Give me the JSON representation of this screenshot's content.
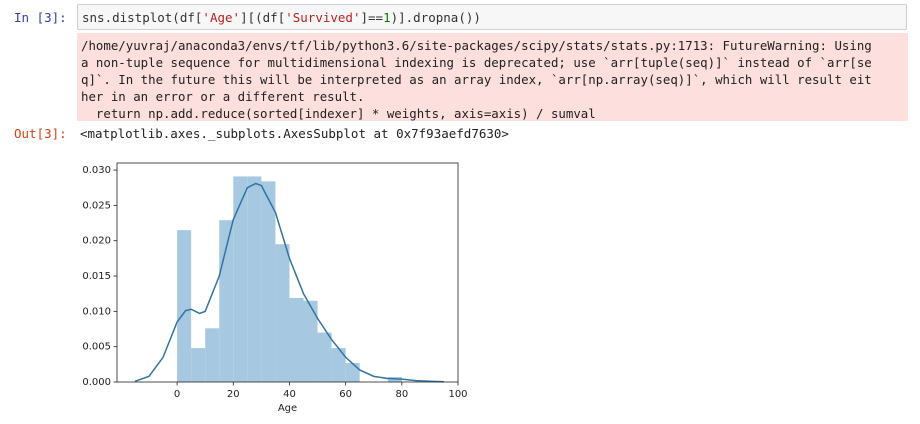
{
  "cell": {
    "in_prompt": "In [3]:",
    "code_tokens": [
      "sns.distplot(df[",
      "'Age'",
      "][(df[",
      "'Survived'",
      "]==",
      "1",
      ")].dropna())"
    ],
    "warning_lines": [
      "/home/yuvraj/anaconda3/envs/tf/lib/python3.6/site-packages/scipy/stats/stats.py:1713: FutureWarning: Using",
      "a non-tuple sequence for multidimensional indexing is deprecated; use `arr[tuple(seq)]` instead of `arr[se",
      "q]`. In the future this will be interpreted as an array index, `arr[np.array(seq)]`, which will result eit",
      "her in an error or a different result.",
      "  return np.add.reduce(sorted[indexer] * weights, axis=axis) / sumval"
    ],
    "out_prompt": "Out[3]:",
    "output": "<matplotlib.axes._subplots.AxesSubplot at 0x7f93aefd7630>"
  },
  "chart_data": {
    "type": "histogram",
    "xlabel": "Age",
    "bins": [
      0,
      5,
      10,
      15,
      20,
      25,
      30,
      35,
      40,
      45,
      50,
      55,
      60,
      65,
      70,
      75,
      80
    ],
    "values": [
      0.0215,
      0.0048,
      0.0076,
      0.0229,
      0.0291,
      0.0291,
      0.0284,
      0.0195,
      0.0119,
      0.0115,
      0.007,
      0.0048,
      0.0027,
      0,
      0,
      0.0007
    ],
    "color": "#a6c8e0",
    "kde": {
      "x": [
        -15,
        -10,
        -5,
        0,
        3,
        5,
        8,
        10,
        15,
        20,
        25,
        28,
        30,
        35,
        40,
        45,
        50,
        55,
        60,
        65,
        70,
        75,
        80,
        85,
        90,
        95
      ],
      "values": [
        0.0001,
        0.0008,
        0.0035,
        0.0085,
        0.0101,
        0.0103,
        0.0097,
        0.01,
        0.015,
        0.023,
        0.0275,
        0.0281,
        0.0278,
        0.024,
        0.0175,
        0.0125,
        0.009,
        0.006,
        0.0035,
        0.0017,
        0.0008,
        0.0005,
        0.0004,
        0.0002,
        0.0001,
        3e-05
      ],
      "color": "#3274a1"
    },
    "xlim": [
      -21.4,
      100
    ],
    "ylim": [
      0,
      0.031
    ],
    "xticks": [
      0,
      20,
      40,
      60,
      80,
      100
    ],
    "yticks": [
      {
        "value": 0,
        "label": "0.000"
      },
      0.005,
      {
        "value": 0.01,
        "label": "0.010"
      },
      0.015,
      {
        "value": 0.02,
        "label": "0.020"
      },
      0.025,
      {
        "value": 0.03,
        "label": "0.030"
      }
    ]
  }
}
